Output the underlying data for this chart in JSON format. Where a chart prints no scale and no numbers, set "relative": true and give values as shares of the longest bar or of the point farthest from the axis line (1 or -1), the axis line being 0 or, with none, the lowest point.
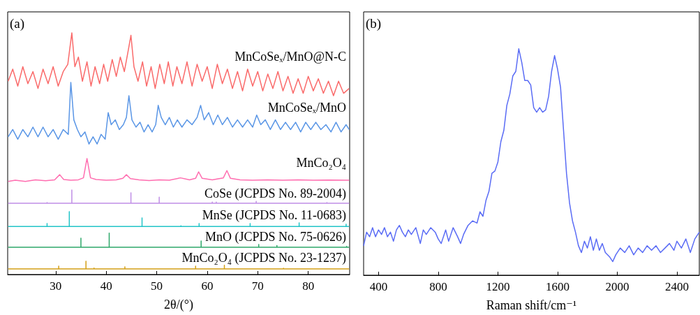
{
  "chart_data": [
    {
      "type": "line",
      "title": "(a)",
      "xlabel": "2θ/(°)",
      "relative": true,
      "marker": "none",
      "xlim": [
        20.5,
        88.2
      ],
      "xticks": [
        30,
        40,
        50,
        60,
        70,
        80
      ],
      "series": [
        {
          "name": "MnCoSeₓ/MnO@N-C",
          "color": "#fa6a6a",
          "x": [
            20.6,
            21.5,
            22.5,
            23.5,
            24.5,
            25.5,
            26.5,
            27.5,
            28.5,
            29.5,
            30.5,
            31.5,
            32.4,
            33.2,
            33.8,
            34.5,
            35.3,
            36.2,
            37.0,
            37.8,
            38.7,
            39.5,
            40.3,
            41.2,
            42.0,
            42.8,
            43.6,
            44.3,
            44.9,
            45.5,
            46.3,
            47.2,
            48.0,
            48.9,
            49.7,
            50.6,
            51.5,
            52.3,
            53.2,
            54.0,
            55.0,
            56.0,
            57.0,
            58.0,
            59.0,
            60.0,
            61.0,
            62.0,
            63.0,
            64.0,
            65.0,
            66.0,
            67.0,
            68.0,
            69.0,
            70.0,
            71.0,
            72.0,
            73.0,
            74.0,
            75.0,
            76.0,
            77.0,
            78.0,
            79.0,
            80.0,
            81.0,
            82.0,
            83.0,
            84.0,
            85.0,
            86.0,
            87.0,
            88.1
          ],
          "values": [
            0.8,
            0.85,
            0.78,
            0.86,
            0.79,
            0.84,
            0.77,
            0.85,
            0.79,
            0.86,
            0.78,
            0.84,
            0.87,
            1.0,
            0.86,
            0.9,
            0.8,
            0.88,
            0.78,
            0.86,
            0.79,
            0.87,
            0.8,
            0.89,
            0.82,
            0.9,
            0.84,
            0.92,
            0.99,
            0.86,
            0.8,
            0.88,
            0.78,
            0.86,
            0.77,
            0.87,
            0.79,
            0.88,
            0.78,
            0.86,
            0.79,
            0.88,
            0.78,
            0.87,
            0.8,
            0.86,
            0.77,
            0.87,
            0.79,
            0.85,
            0.77,
            0.84,
            0.76,
            0.85,
            0.78,
            0.84,
            0.76,
            0.83,
            0.77,
            0.84,
            0.76,
            0.82,
            0.75,
            0.81,
            0.75,
            0.82,
            0.76,
            0.81,
            0.75,
            0.8,
            0.74,
            0.8,
            0.75,
            0.77
          ]
        },
        {
          "name": "MnCoSeₓ/MnO",
          "color": "#5a96e6",
          "x": [
            20.6,
            21.5,
            22.5,
            23.5,
            24.5,
            25.5,
            26.5,
            27.5,
            28.5,
            29.5,
            30.5,
            31.5,
            32.5,
            33.0,
            33.6,
            34.3,
            35.0,
            35.8,
            36.6,
            37.4,
            38.2,
            39.0,
            39.8,
            40.4,
            41.0,
            41.8,
            42.6,
            43.4,
            44.0,
            44.5,
            45.1,
            45.9,
            46.7,
            47.5,
            48.3,
            49.1,
            49.8,
            50.3,
            50.9,
            51.7,
            52.5,
            53.3,
            54.1,
            55.0,
            56.0,
            57.0,
            58.0,
            58.7,
            59.4,
            60.3,
            61.2,
            62.1,
            63.0,
            64.0,
            65.0,
            66.0,
            67.0,
            68.0,
            69.0,
            69.8,
            70.6,
            71.5,
            72.5,
            73.5,
            74.5,
            75.5,
            76.5,
            77.5,
            78.5,
            79.5,
            80.5,
            81.5,
            82.5,
            83.5,
            84.5,
            85.5,
            86.5,
            87.5,
            88.1
          ],
          "values": [
            0.57,
            0.6,
            0.56,
            0.6,
            0.57,
            0.61,
            0.57,
            0.61,
            0.57,
            0.6,
            0.56,
            0.6,
            0.58,
            0.795,
            0.64,
            0.6,
            0.57,
            0.59,
            0.54,
            0.57,
            0.54,
            0.58,
            0.56,
            0.67,
            0.62,
            0.64,
            0.6,
            0.62,
            0.65,
            0.74,
            0.64,
            0.61,
            0.63,
            0.59,
            0.62,
            0.59,
            0.62,
            0.7,
            0.65,
            0.62,
            0.65,
            0.61,
            0.64,
            0.61,
            0.64,
            0.62,
            0.65,
            0.7,
            0.64,
            0.67,
            0.62,
            0.66,
            0.62,
            0.65,
            0.61,
            0.64,
            0.61,
            0.64,
            0.61,
            0.66,
            0.62,
            0.64,
            0.6,
            0.64,
            0.6,
            0.63,
            0.6,
            0.63,
            0.59,
            0.63,
            0.6,
            0.63,
            0.6,
            0.62,
            0.59,
            0.63,
            0.59,
            0.62,
            0.6
          ]
        },
        {
          "name": "MnCo₂O₄",
          "color": "#ff6eb0",
          "x": [
            20.6,
            22,
            24,
            26,
            28,
            29.8,
            30.8,
            31.6,
            33,
            34.5,
            35.5,
            36.2,
            36.9,
            38,
            40,
            42,
            43.3,
            44.0,
            44.8,
            46.5,
            48.5,
            50.5,
            52.5,
            54.7,
            56.5,
            57.7,
            58.3,
            59,
            61,
            63.2,
            63.9,
            64.6,
            66.5,
            69,
            72,
            75,
            78,
            81,
            84,
            88.1
          ],
          "values": [
            0.385,
            0.39,
            0.385,
            0.392,
            0.388,
            0.392,
            0.413,
            0.393,
            0.39,
            0.392,
            0.4,
            0.48,
            0.4,
            0.393,
            0.39,
            0.392,
            0.398,
            0.413,
            0.397,
            0.392,
            0.389,
            0.392,
            0.39,
            0.4,
            0.392,
            0.398,
            0.425,
            0.398,
            0.392,
            0.4,
            0.43,
            0.398,
            0.392,
            0.39,
            0.392,
            0.39,
            0.392,
            0.39,
            0.391,
            0.39
          ]
        },
        {
          "name": "CoSe (JCPDS No. 89-2004)",
          "color": "#c08ee6",
          "x": [
            20.6,
            28.3,
            28.3,
            28.3,
            33.2,
            33.2,
            33.2,
            44.9,
            44.9,
            44.9,
            50.5,
            50.5,
            50.5,
            61.0,
            61.0,
            61.0,
            61.8,
            61.8,
            61.8,
            69.7,
            69.7,
            69.7,
            83.7,
            83.7,
            83.7,
            88.1
          ],
          "values": [
            0.295,
            0.295,
            0.298,
            0.295,
            0.295,
            0.35,
            0.295,
            0.295,
            0.338,
            0.295,
            0.295,
            0.32,
            0.295,
            0.295,
            0.3,
            0.295,
            0.295,
            0.3,
            0.295,
            0.295,
            0.303,
            0.295,
            0.295,
            0.298,
            0.295,
            0.295
          ]
        },
        {
          "name": "MnSe (JCPDS No. 11-0683)",
          "color": "#22c4c8",
          "x": [
            20.6,
            28.3,
            28.3,
            28.3,
            32.7,
            32.7,
            32.7,
            47.1,
            47.1,
            47.1,
            54.8,
            54.8,
            54.8,
            58.4,
            58.4,
            58.4,
            68.5,
            68.5,
            68.5,
            78.2,
            78.2,
            78.2,
            87.5,
            87.5,
            87.5,
            88.1
          ],
          "values": [
            0.199,
            0.199,
            0.211,
            0.199,
            0.199,
            0.26,
            0.199,
            0.199,
            0.234,
            0.199,
            0.199,
            0.202,
            0.199,
            0.199,
            0.211,
            0.199,
            0.199,
            0.211,
            0.199,
            0.199,
            0.214,
            0.199,
            0.199,
            0.208,
            0.199,
            0.199
          ]
        },
        {
          "name": "MnO (JCPDS No. 75-0626)",
          "color": "#2ea86a",
          "x": [
            20.6,
            35.0,
            35.0,
            35.0,
            40.6,
            40.6,
            40.6,
            58.8,
            58.8,
            58.8,
            70.2,
            70.2,
            70.2,
            73.8,
            73.8,
            73.8,
            87.6,
            87.6,
            87.6,
            88.1
          ],
          "values": [
            0.113,
            0.113,
            0.15,
            0.113,
            0.113,
            0.171,
            0.113,
            0.113,
            0.139,
            0.113,
            0.113,
            0.124,
            0.113,
            0.113,
            0.12,
            0.113,
            0.113,
            0.116,
            0.113,
            0.113
          ]
        },
        {
          "name": "MnCo₂O₄ (JCPDS No. 23-1237)",
          "color": "#d4a017",
          "x": [
            20.6,
            30.6,
            30.6,
            30.6,
            36.0,
            36.0,
            36.0,
            37.6,
            37.6,
            37.6,
            43.7,
            43.7,
            43.7,
            54.3,
            54.3,
            54.3,
            57.7,
            57.7,
            57.7,
            63.4,
            63.4,
            63.4,
            75.1,
            75.1,
            75.1,
            88.1
          ],
          "values": [
            0.023,
            0.023,
            0.035,
            0.023,
            0.023,
            0.055,
            0.023,
            0.023,
            0.027,
            0.023,
            0.023,
            0.032,
            0.023,
            0.023,
            0.025,
            0.023,
            0.023,
            0.035,
            0.023,
            0.023,
            0.038,
            0.023,
            0.023,
            0.026,
            0.023,
            0.023
          ]
        }
      ]
    },
    {
      "type": "line",
      "title": "(b)",
      "xlabel": "Raman shift/cm⁻¹",
      "relative": true,
      "marker": "none",
      "xlim": [
        300,
        2550
      ],
      "xticks": [
        400,
        800,
        1200,
        1600,
        2000,
        2400
      ],
      "series": [
        {
          "color": "#5a6cf5",
          "x": [
            300,
            320,
            340,
            360,
            380,
            400,
            420,
            440,
            460,
            480,
            500,
            520,
            540,
            560,
            580,
            600,
            620,
            650,
            680,
            700,
            720,
            750,
            780,
            800,
            820,
            850,
            870,
            900,
            930,
            950,
            970,
            1000,
            1030,
            1060,
            1080,
            1100,
            1120,
            1140,
            1160,
            1180,
            1200,
            1220,
            1240,
            1260,
            1280,
            1300,
            1320,
            1340,
            1360,
            1380,
            1400,
            1420,
            1440,
            1460,
            1480,
            1500,
            1520,
            1540,
            1560,
            1580,
            1600,
            1620,
            1640,
            1660,
            1680,
            1700,
            1720,
            1740,
            1760,
            1780,
            1800,
            1820,
            1840,
            1860,
            1880,
            1900,
            1920,
            1950,
            1970,
            1990,
            2020,
            2050,
            2080,
            2110,
            2140,
            2170,
            2200,
            2230,
            2260,
            2290,
            2320,
            2350,
            2380,
            2400,
            2430,
            2460,
            2490,
            2520,
            2550
          ],
          "values": [
            0.13,
            0.19,
            0.17,
            0.21,
            0.17,
            0.2,
            0.18,
            0.21,
            0.17,
            0.19,
            0.15,
            0.2,
            0.22,
            0.19,
            0.17,
            0.2,
            0.18,
            0.21,
            0.14,
            0.2,
            0.18,
            0.21,
            0.19,
            0.16,
            0.14,
            0.2,
            0.15,
            0.21,
            0.17,
            0.14,
            0.18,
            0.22,
            0.24,
            0.23,
            0.28,
            0.26,
            0.33,
            0.37,
            0.45,
            0.46,
            0.5,
            0.59,
            0.64,
            0.75,
            0.8,
            0.88,
            0.9,
            1.0,
            0.94,
            0.86,
            0.86,
            0.84,
            0.74,
            0.72,
            0.74,
            0.72,
            0.73,
            0.79,
            0.9,
            0.97,
            0.91,
            0.83,
            0.64,
            0.45,
            0.32,
            0.24,
            0.19,
            0.13,
            0.1,
            0.15,
            0.12,
            0.17,
            0.11,
            0.16,
            0.11,
            0.14,
            0.1,
            0.08,
            0.06,
            0.09,
            0.12,
            0.1,
            0.13,
            0.09,
            0.12,
            0.1,
            0.13,
            0.11,
            0.13,
            0.1,
            0.12,
            0.14,
            0.11,
            0.15,
            0.12,
            0.16,
            0.1,
            0.16,
            0.19
          ]
        }
      ]
    }
  ]
}
